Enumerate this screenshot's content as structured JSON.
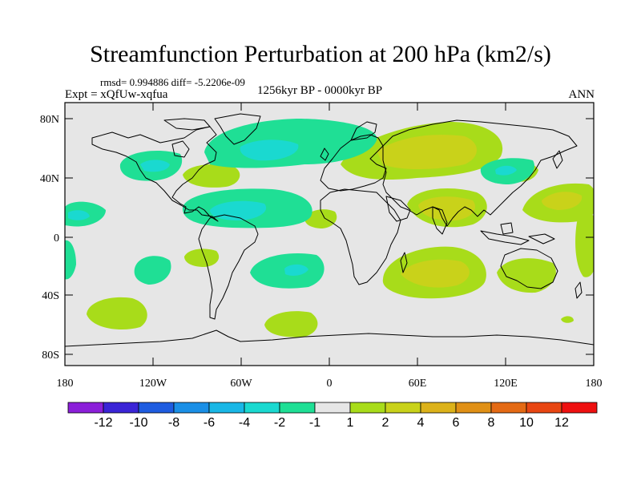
{
  "title": "Streamfunction Perturbation at 200 hPa (km2/s)",
  "stats": "rmsd= 0.994886 diff= -5.2206e-09",
  "experiment": "Expt = xQfUw-xqfua",
  "period": "1256kyr BP - 0000kyr BP",
  "season": "ANN",
  "lat_ticks": [
    "80N",
    "40N",
    "0",
    "40S",
    "80S"
  ],
  "lon_ticks": [
    "180",
    "120W",
    "60W",
    "0",
    "60E",
    "120E",
    "180"
  ],
  "colorbar": {
    "labels": [
      "-12",
      "-10",
      "-8",
      "-6",
      "-4",
      "-2",
      "-1",
      "1",
      "2",
      "4",
      "6",
      "8",
      "10",
      "12"
    ],
    "colors": [
      "#8b1fd9",
      "#3a24d6",
      "#1e5ce0",
      "#1a8fe6",
      "#19b7e6",
      "#1ad9d0",
      "#1fdf95",
      "#e6e6e6",
      "#a8dc1a",
      "#c9d21a",
      "#dcb21a",
      "#e09016",
      "#e46a14",
      "#e84612",
      "#ee1010"
    ]
  },
  "colors": {
    "ocean_background": "#e6e6e6",
    "coastline": "#000000",
    "frame": "#000000"
  }
}
